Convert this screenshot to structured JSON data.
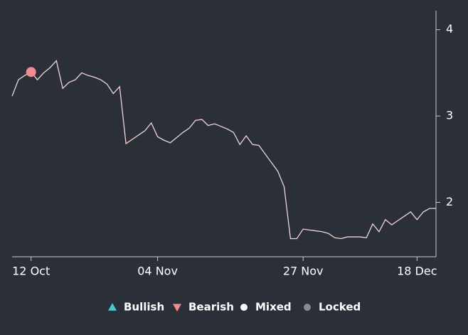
{
  "chart_data": {
    "type": "line",
    "background": "#2b3038",
    "line_color": "#f3d4d4",
    "axis_color": "#c9ccd1",
    "categories": [
      null,
      null,
      null,
      "12 Oct",
      null,
      null,
      null,
      null,
      null,
      null,
      null,
      null,
      null,
      null,
      null,
      null,
      null,
      null,
      null,
      null,
      null,
      null,
      null,
      "04 Nov",
      null,
      null,
      null,
      null,
      null,
      null,
      null,
      null,
      null,
      null,
      null,
      null,
      null,
      null,
      null,
      null,
      null,
      null,
      null,
      null,
      null,
      null,
      "27 Nov",
      null,
      null,
      null,
      null,
      null,
      null,
      null,
      null,
      null,
      null,
      null,
      null,
      null,
      null,
      null,
      null,
      null,
      "18 Dec",
      null,
      null,
      null
    ],
    "values": [
      3.23,
      3.42,
      3.47,
      3.51,
      3.42,
      3.5,
      3.56,
      3.64,
      3.32,
      3.39,
      3.42,
      3.5,
      3.47,
      3.45,
      3.42,
      3.37,
      3.26,
      3.34,
      2.68,
      2.73,
      2.78,
      2.83,
      2.92,
      2.76,
      2.72,
      2.69,
      2.75,
      2.81,
      2.86,
      2.95,
      2.96,
      2.89,
      2.91,
      2.88,
      2.85,
      2.81,
      2.67,
      2.77,
      2.67,
      2.66,
      2.56,
      2.46,
      2.36,
      2.18,
      1.58,
      1.58,
      1.69,
      1.68,
      1.67,
      1.66,
      1.64,
      1.59,
      1.58,
      1.6,
      1.6,
      1.6,
      1.59,
      1.75,
      1.66,
      1.8,
      1.74,
      1.79,
      1.84,
      1.89,
      1.8,
      1.89,
      1.93,
      1.93
    ],
    "series": [
      {
        "name": "Bullish",
        "color": "#3ccfd0",
        "symbol": "triangle-up",
        "values": [
          null,
          null,
          null,
          null,
          null,
          null,
          null,
          null,
          null,
          null,
          null,
          null,
          null,
          null,
          null,
          null,
          null,
          null,
          null,
          null,
          null,
          null,
          null,
          null,
          null,
          null,
          null,
          null,
          null,
          null,
          null,
          null,
          null,
          null,
          null,
          null,
          null,
          null,
          null,
          null,
          null,
          null,
          null,
          null,
          null,
          null,
          null,
          null,
          null,
          null,
          null,
          null,
          null,
          null,
          null,
          null,
          null,
          null,
          null,
          null,
          null,
          null,
          null,
          null,
          null,
          null,
          null,
          null
        ]
      },
      {
        "name": "Bearish",
        "color": "#f28b8e",
        "symbol": "triangle-down",
        "values": [
          null,
          null,
          null,
          3.51,
          null,
          null,
          null,
          null,
          null,
          null,
          null,
          null,
          null,
          null,
          null,
          null,
          null,
          null,
          null,
          null,
          null,
          null,
          null,
          null,
          null,
          null,
          null,
          null,
          null,
          null,
          null,
          null,
          null,
          null,
          null,
          null,
          null,
          null,
          null,
          null,
          null,
          null,
          null,
          null,
          null,
          null,
          null,
          null,
          null,
          null,
          null,
          null,
          null,
          null,
          null,
          null,
          null,
          null,
          null,
          null,
          null,
          null,
          null,
          null,
          null,
          null,
          null,
          null
        ]
      },
      {
        "name": "Mixed",
        "color": "#ffffff",
        "symbol": "circle",
        "values": [
          null,
          null,
          null,
          null,
          null,
          null,
          null,
          null,
          null,
          null,
          null,
          null,
          null,
          null,
          null,
          null,
          null,
          null,
          null,
          null,
          null,
          null,
          null,
          null,
          null,
          null,
          null,
          null,
          null,
          null,
          null,
          null,
          null,
          null,
          null,
          null,
          null,
          null,
          null,
          null,
          null,
          null,
          null,
          null,
          null,
          null,
          null,
          null,
          null,
          null,
          null,
          null,
          null,
          null,
          null,
          null,
          null,
          null,
          null,
          null,
          null,
          null,
          null,
          null,
          null,
          null,
          null,
          null
        ]
      },
      {
        "name": "Locked",
        "color": "#868b94",
        "symbol": "circle",
        "values": [
          null,
          null,
          null,
          null,
          null,
          null,
          null,
          null,
          null,
          null,
          null,
          null,
          null,
          null,
          null,
          null,
          null,
          null,
          null,
          null,
          null,
          null,
          null,
          null,
          null,
          null,
          null,
          null,
          null,
          null,
          null,
          null,
          null,
          null,
          null,
          null,
          null,
          null,
          null,
          null,
          null,
          null,
          null,
          null,
          null,
          null,
          null,
          null,
          null,
          null,
          null,
          null,
          null,
          null,
          null,
          null,
          null,
          null,
          null,
          null,
          null,
          null,
          null,
          null,
          null,
          null,
          null,
          null
        ]
      }
    ],
    "ylim": [
      1.37,
      4.22
    ],
    "yticks": [
      2,
      3,
      4
    ],
    "legend": "bottom"
  }
}
